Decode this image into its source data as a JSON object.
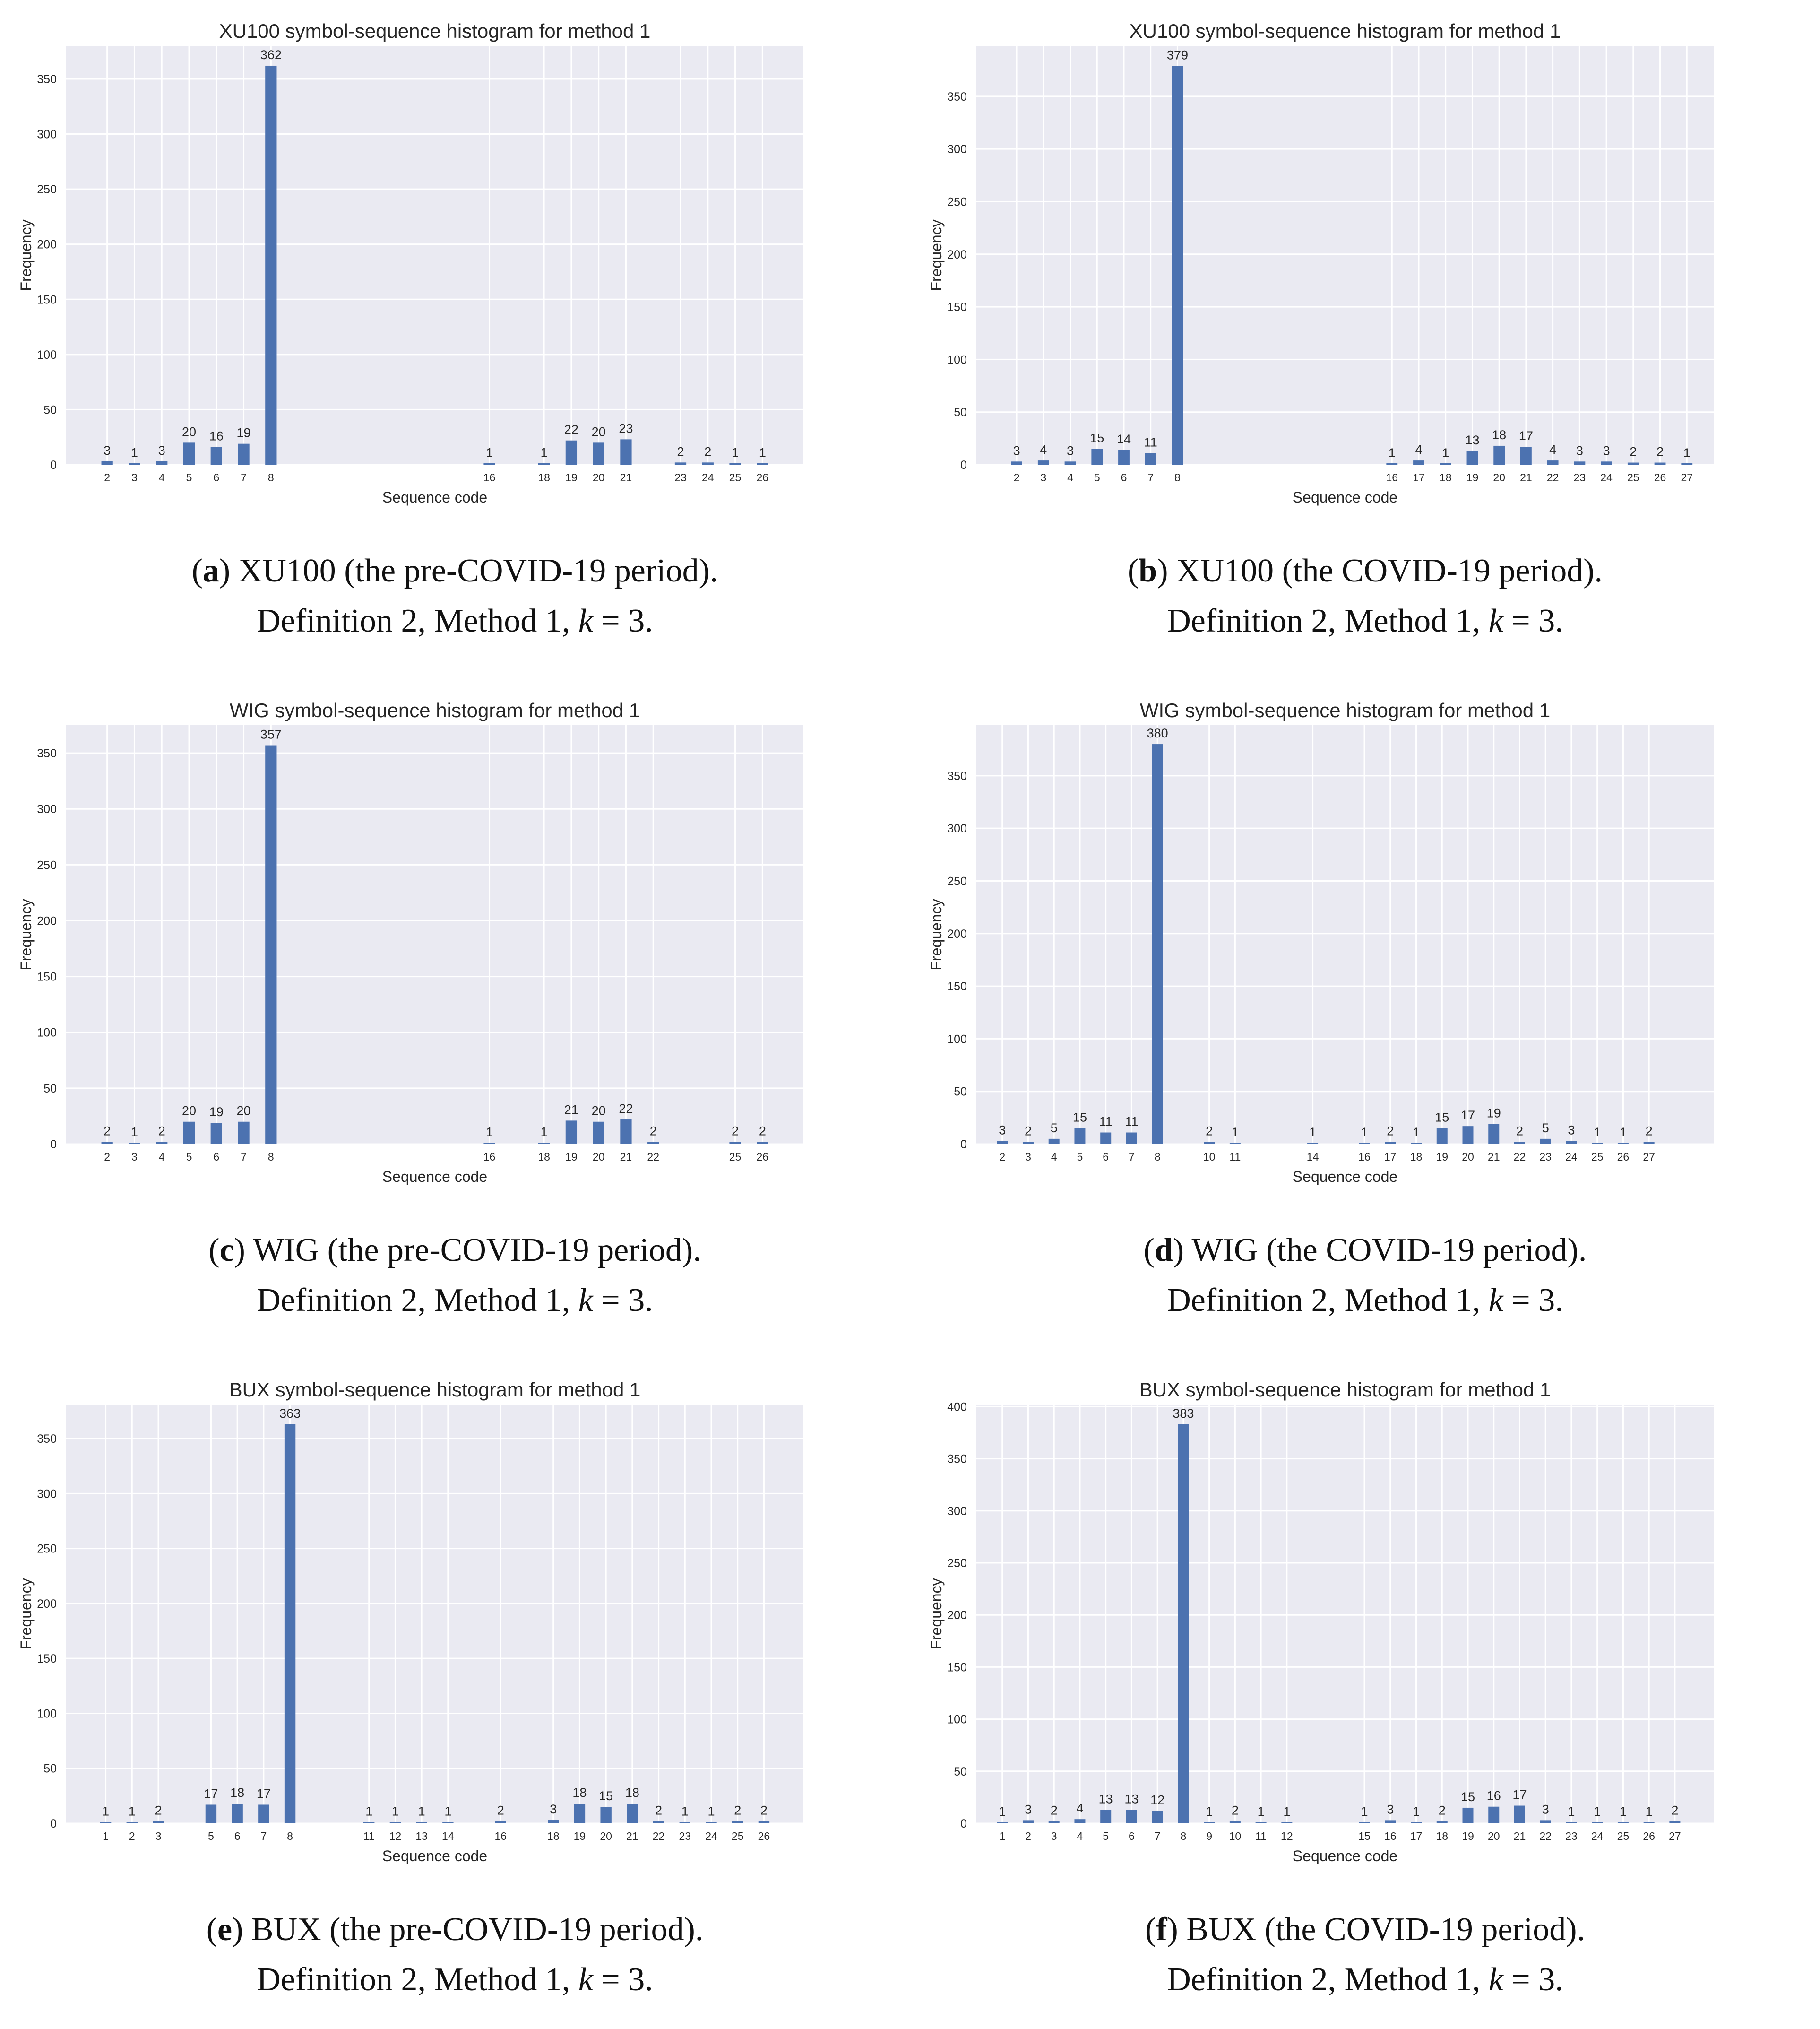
{
  "figure": {
    "def_label": "Definition 2, Method 1, ",
    "k_var": "k",
    "k_eq": " = 3."
  },
  "chart_data": [
    {
      "id": "a",
      "type": "bar",
      "title": "XU100 symbol-sequence histogram for method 1",
      "xlabel": "Sequence code",
      "ylabel": "Frequency",
      "ylim": [
        0,
        380
      ],
      "yticks": [
        0,
        50,
        100,
        150,
        200,
        250,
        300,
        350
      ],
      "xrange": [
        0.5,
        27.5
      ],
      "categories": [
        2,
        3,
        4,
        5,
        6,
        7,
        8,
        16,
        18,
        19,
        20,
        21,
        23,
        24,
        25,
        26
      ],
      "values": [
        3,
        1,
        3,
        20,
        16,
        19,
        362,
        1,
        1,
        22,
        20,
        23,
        2,
        2,
        1,
        1
      ],
      "bar_color": "#4c72b0",
      "background": "#eaeaf2",
      "caption_letter": "a",
      "caption_text": "XU100 (the pre-COVID-19 period)."
    },
    {
      "id": "b",
      "type": "bar",
      "title": "XU100 symbol-sequence histogram for method 1",
      "xlabel": "Sequence code",
      "ylabel": "Frequency",
      "ylim": [
        0,
        398
      ],
      "yticks": [
        0,
        50,
        100,
        150,
        200,
        250,
        300,
        350
      ],
      "xrange": [
        0.5,
        28
      ],
      "categories": [
        2,
        3,
        4,
        5,
        6,
        7,
        8,
        16,
        17,
        18,
        19,
        20,
        21,
        22,
        23,
        24,
        25,
        26,
        27
      ],
      "values": [
        3,
        4,
        3,
        15,
        14,
        11,
        379,
        1,
        4,
        1,
        13,
        18,
        17,
        4,
        3,
        3,
        2,
        2,
        1
      ],
      "bar_color": "#4c72b0",
      "background": "#eaeaf2",
      "caption_letter": "b",
      "caption_text": "XU100 (the COVID-19 period)."
    },
    {
      "id": "c",
      "type": "bar",
      "title": "WIG symbol-sequence histogram for method 1",
      "xlabel": "Sequence code",
      "ylabel": "Frequency",
      "ylim": [
        0,
        375
      ],
      "yticks": [
        0,
        50,
        100,
        150,
        200,
        250,
        300,
        350
      ],
      "xrange": [
        0.5,
        27.5
      ],
      "categories": [
        2,
        3,
        4,
        5,
        6,
        7,
        8,
        16,
        18,
        19,
        20,
        21,
        22,
        25,
        26
      ],
      "values": [
        2,
        1,
        2,
        20,
        19,
        20,
        357,
        1,
        1,
        21,
        20,
        22,
        2,
        2,
        2
      ],
      "bar_color": "#4c72b0",
      "background": "#eaeaf2",
      "caption_letter": "c",
      "caption_text": "WIG (the pre-COVID-19 period)."
    },
    {
      "id": "d",
      "type": "bar",
      "title": "WIG symbol-sequence histogram for method 1",
      "xlabel": "Sequence code",
      "ylabel": "Frequency",
      "ylim": [
        0,
        398
      ],
      "yticks": [
        0,
        50,
        100,
        150,
        200,
        250,
        300,
        350
      ],
      "xrange": [
        1.0,
        29.5
      ],
      "categories": [
        2,
        3,
        4,
        5,
        6,
        7,
        8,
        10,
        11,
        14,
        16,
        17,
        18,
        19,
        20,
        21,
        22,
        23,
        24,
        25,
        26,
        27
      ],
      "values": [
        3,
        2,
        5,
        15,
        11,
        11,
        380,
        2,
        1,
        1,
        1,
        2,
        1,
        15,
        17,
        19,
        2,
        5,
        3,
        1,
        1,
        2
      ],
      "bar_color": "#4c72b0",
      "background": "#eaeaf2",
      "caption_letter": "d",
      "caption_text": "WIG (the COVID-19 period)."
    },
    {
      "id": "e",
      "type": "bar",
      "title": "BUX symbol-sequence histogram for method 1",
      "xlabel": "Sequence code",
      "ylabel": "Frequency",
      "ylim": [
        0,
        381
      ],
      "yticks": [
        0,
        50,
        100,
        150,
        200,
        250,
        300,
        350
      ],
      "xrange": [
        -0.5,
        27.5
      ],
      "categories": [
        1,
        2,
        3,
        5,
        6,
        7,
        8,
        11,
        12,
        13,
        14,
        16,
        18,
        19,
        20,
        21,
        22,
        23,
        24,
        25,
        26
      ],
      "values": [
        1,
        1,
        2,
        17,
        18,
        17,
        363,
        1,
        1,
        1,
        1,
        2,
        3,
        18,
        15,
        18,
        2,
        1,
        1,
        2,
        2
      ],
      "bar_color": "#4c72b0",
      "background": "#eaeaf2",
      "caption_letter": "e",
      "caption_text": "BUX (the pre-COVID-19 period)."
    },
    {
      "id": "f",
      "type": "bar",
      "title": "BUX symbol-sequence histogram for method 1",
      "xlabel": "Sequence code",
      "ylabel": "Frequency",
      "ylim": [
        0,
        402
      ],
      "yticks": [
        0,
        50,
        100,
        150,
        200,
        250,
        300,
        350,
        400
      ],
      "xrange": [
        0.0,
        28.5
      ],
      "categories": [
        1,
        2,
        3,
        4,
        5,
        6,
        7,
        8,
        9,
        10,
        11,
        12,
        15,
        16,
        17,
        18,
        19,
        20,
        21,
        22,
        23,
        24,
        25,
        26,
        27
      ],
      "values": [
        1,
        3,
        2,
        4,
        13,
        13,
        12,
        383,
        1,
        2,
        1,
        1,
        1,
        3,
        1,
        2,
        15,
        16,
        17,
        3,
        1,
        1,
        1,
        1,
        2
      ],
      "bar_color": "#4c72b0",
      "background": "#eaeaf2",
      "caption_letter": "f",
      "caption_text": "BUX (the COVID-19 period)."
    }
  ]
}
